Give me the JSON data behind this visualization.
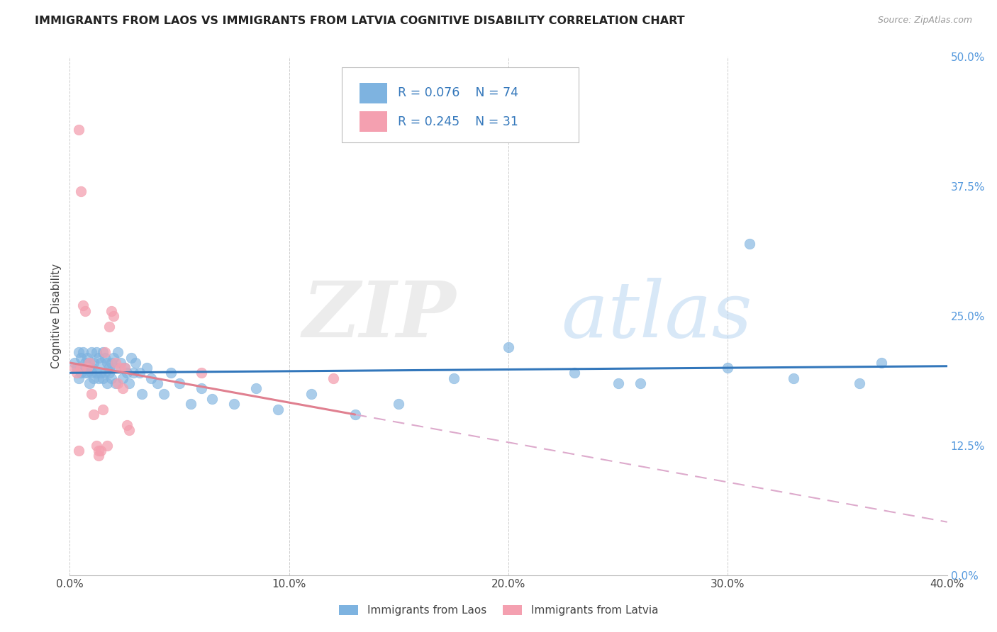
{
  "title": "IMMIGRANTS FROM LAOS VS IMMIGRANTS FROM LATVIA COGNITIVE DISABILITY CORRELATION CHART",
  "source": "Source: ZipAtlas.com",
  "xlabel_ticks": [
    "0.0%",
    "10.0%",
    "20.0%",
    "30.0%",
    "40.0%"
  ],
  "ylabel_ticks": [
    "0.0%",
    "12.5%",
    "25.0%",
    "37.5%",
    "50.0%"
  ],
  "xlim": [
    0.0,
    0.4
  ],
  "ylim": [
    0.0,
    0.5
  ],
  "legend_label_1": "Immigrants from Laos",
  "legend_label_2": "Immigrants from Latvia",
  "R1": 0.076,
  "N1": 74,
  "R2": 0.245,
  "N2": 31,
  "color_laos": "#7EB3E0",
  "color_latvia": "#F4A0B0",
  "trendline_laos_color": "#3377BB",
  "trendline_latvia_color": "#E08090",
  "trendline_dashed_color": "#DDAAAA",
  "watermark_zip_color": "#DDDDDD",
  "watermark_atlas_color": "#AACCEE",
  "laos_x": [
    0.002,
    0.003,
    0.004,
    0.004,
    0.005,
    0.005,
    0.006,
    0.006,
    0.007,
    0.007,
    0.008,
    0.008,
    0.009,
    0.009,
    0.01,
    0.01,
    0.01,
    0.011,
    0.011,
    0.012,
    0.012,
    0.013,
    0.013,
    0.014,
    0.014,
    0.015,
    0.015,
    0.016,
    0.016,
    0.017,
    0.017,
    0.018,
    0.018,
    0.019,
    0.019,
    0.02,
    0.021,
    0.021,
    0.022,
    0.023,
    0.024,
    0.025,
    0.026,
    0.027,
    0.028,
    0.029,
    0.03,
    0.032,
    0.033,
    0.035,
    0.037,
    0.04,
    0.043,
    0.046,
    0.05,
    0.055,
    0.06,
    0.065,
    0.075,
    0.085,
    0.095,
    0.11,
    0.13,
    0.15,
    0.175,
    0.2,
    0.23,
    0.26,
    0.3,
    0.33,
    0.36,
    0.37,
    0.31,
    0.25
  ],
  "laos_y": [
    0.205,
    0.2,
    0.215,
    0.19,
    0.21,
    0.195,
    0.2,
    0.215,
    0.205,
    0.195,
    0.21,
    0.195,
    0.205,
    0.185,
    0.215,
    0.2,
    0.195,
    0.205,
    0.19,
    0.215,
    0.195,
    0.21,
    0.19,
    0.205,
    0.195,
    0.215,
    0.19,
    0.21,
    0.195,
    0.205,
    0.185,
    0.2,
    0.195,
    0.205,
    0.19,
    0.21,
    0.2,
    0.185,
    0.215,
    0.205,
    0.19,
    0.2,
    0.195,
    0.185,
    0.21,
    0.195,
    0.205,
    0.195,
    0.175,
    0.2,
    0.19,
    0.185,
    0.175,
    0.195,
    0.185,
    0.165,
    0.18,
    0.17,
    0.165,
    0.18,
    0.16,
    0.175,
    0.155,
    0.165,
    0.19,
    0.22,
    0.195,
    0.185,
    0.2,
    0.19,
    0.185,
    0.205,
    0.32,
    0.185
  ],
  "latvia_x": [
    0.002,
    0.003,
    0.004,
    0.004,
    0.005,
    0.005,
    0.006,
    0.007,
    0.008,
    0.009,
    0.01,
    0.011,
    0.012,
    0.013,
    0.013,
    0.014,
    0.015,
    0.016,
    0.017,
    0.018,
    0.019,
    0.02,
    0.021,
    0.022,
    0.023,
    0.024,
    0.025,
    0.026,
    0.027,
    0.06,
    0.12
  ],
  "latvia_y": [
    0.2,
    0.195,
    0.12,
    0.43,
    0.37,
    0.2,
    0.26,
    0.255,
    0.2,
    0.205,
    0.175,
    0.155,
    0.125,
    0.115,
    0.12,
    0.12,
    0.16,
    0.215,
    0.125,
    0.24,
    0.255,
    0.25,
    0.205,
    0.185,
    0.2,
    0.18,
    0.2,
    0.145,
    0.14,
    0.195,
    0.19
  ]
}
